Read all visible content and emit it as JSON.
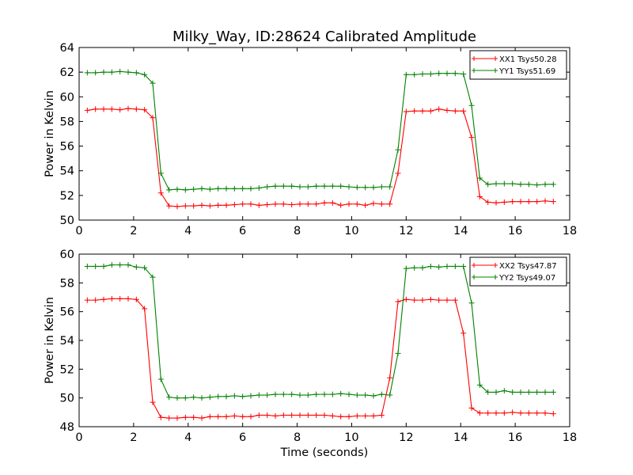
{
  "title": "Milky_Way, ID:28624 Calibrated Amplitude",
  "chart_data": [
    {
      "type": "line",
      "title": "Milky_Way, ID:28624 Calibrated Amplitude",
      "xlabel": "",
      "ylabel": "Power in Kelvin",
      "xlim": [
        0,
        18
      ],
      "ylim": [
        50,
        64
      ],
      "xticks": [
        "0",
        "2",
        "4",
        "6",
        "8",
        "10",
        "12",
        "14",
        "16",
        "18"
      ],
      "yticks": [
        "50",
        "52",
        "54",
        "56",
        "58",
        "60",
        "62",
        "64"
      ],
      "legend_position": "top-right",
      "grid": false,
      "series": [
        {
          "name": "XX1 Tsys50.28",
          "color": "#ff0000",
          "x": [
            0.3,
            0.6,
            0.9,
            1.2,
            1.5,
            1.8,
            2.1,
            2.4,
            2.7,
            3.0,
            3.3,
            3.6,
            3.9,
            4.2,
            4.5,
            4.8,
            5.1,
            5.4,
            5.7,
            6.0,
            6.3,
            6.6,
            6.9,
            7.2,
            7.5,
            7.8,
            8.1,
            8.4,
            8.7,
            9.0,
            9.3,
            9.6,
            9.9,
            10.2,
            10.5,
            10.8,
            11.1,
            11.4,
            11.7,
            12.0,
            12.3,
            12.6,
            12.9,
            13.2,
            13.5,
            13.8,
            14.1,
            14.4,
            14.7,
            15.0,
            15.3,
            15.6,
            15.9,
            16.2,
            16.5,
            16.8,
            17.1,
            17.4
          ],
          "y": [
            58.9,
            59.0,
            59.0,
            59.0,
            58.95,
            59.05,
            59.0,
            58.95,
            58.3,
            52.2,
            51.15,
            51.1,
            51.15,
            51.15,
            51.2,
            51.15,
            51.2,
            51.2,
            51.25,
            51.3,
            51.3,
            51.2,
            51.25,
            51.3,
            51.3,
            51.25,
            51.3,
            51.3,
            51.3,
            51.4,
            51.4,
            51.2,
            51.3,
            51.3,
            51.2,
            51.35,
            51.3,
            51.3,
            53.8,
            58.8,
            58.85,
            58.85,
            58.85,
            59.0,
            58.9,
            58.85,
            58.85,
            56.7,
            51.9,
            51.45,
            51.4,
            51.45,
            51.5,
            51.5,
            51.5,
            51.5,
            51.55,
            51.5
          ]
        },
        {
          "name": "YY1 Tsys51.69",
          "color": "#008000",
          "x": [
            0.3,
            0.6,
            0.9,
            1.2,
            1.5,
            1.8,
            2.1,
            2.4,
            2.7,
            3.0,
            3.3,
            3.6,
            3.9,
            4.2,
            4.5,
            4.8,
            5.1,
            5.4,
            5.7,
            6.0,
            6.3,
            6.6,
            6.9,
            7.2,
            7.5,
            7.8,
            8.1,
            8.4,
            8.7,
            9.0,
            9.3,
            9.6,
            9.9,
            10.2,
            10.5,
            10.8,
            11.1,
            11.4,
            11.7,
            12.0,
            12.3,
            12.6,
            12.9,
            13.2,
            13.5,
            13.8,
            14.1,
            14.4,
            14.7,
            15.0,
            15.3,
            15.6,
            15.9,
            16.2,
            16.5,
            16.8,
            17.1,
            17.4
          ],
          "y": [
            61.95,
            61.95,
            62.0,
            62.0,
            62.05,
            62.0,
            61.95,
            61.8,
            61.1,
            53.8,
            52.45,
            52.5,
            52.45,
            52.5,
            52.55,
            52.5,
            52.55,
            52.55,
            52.55,
            52.55,
            52.55,
            52.6,
            52.7,
            52.75,
            52.75,
            52.75,
            52.7,
            52.7,
            52.75,
            52.75,
            52.75,
            52.75,
            52.7,
            52.65,
            52.65,
            52.65,
            52.7,
            52.7,
            55.7,
            61.8,
            61.8,
            61.85,
            61.85,
            61.9,
            61.9,
            61.9,
            61.85,
            59.3,
            53.4,
            52.9,
            52.95,
            52.95,
            52.95,
            52.9,
            52.9,
            52.85,
            52.9,
            52.9
          ]
        }
      ]
    },
    {
      "type": "line",
      "title": "",
      "xlabel": "Time (seconds)",
      "ylabel": "Power in Kelvin",
      "xlim": [
        0,
        18
      ],
      "ylim": [
        48,
        60
      ],
      "xticks": [
        "0",
        "2",
        "4",
        "6",
        "8",
        "10",
        "12",
        "14",
        "16",
        "18"
      ],
      "yticks": [
        "48",
        "50",
        "52",
        "54",
        "56",
        "58",
        "60"
      ],
      "legend_position": "top-right",
      "grid": false,
      "series": [
        {
          "name": "XX2 Tsys47.87",
          "color": "#ff0000",
          "x": [
            0.3,
            0.6,
            0.9,
            1.2,
            1.5,
            1.8,
            2.1,
            2.4,
            2.7,
            3.0,
            3.3,
            3.6,
            3.9,
            4.2,
            4.5,
            4.8,
            5.1,
            5.4,
            5.7,
            6.0,
            6.3,
            6.6,
            6.9,
            7.2,
            7.5,
            7.8,
            8.1,
            8.4,
            8.7,
            9.0,
            9.3,
            9.6,
            9.9,
            10.2,
            10.5,
            10.8,
            11.1,
            11.4,
            11.7,
            12.0,
            12.3,
            12.6,
            12.9,
            13.2,
            13.5,
            13.8,
            14.1,
            14.4,
            14.7,
            15.0,
            15.3,
            15.6,
            15.9,
            16.2,
            16.5,
            16.8,
            17.1,
            17.4
          ],
          "y": [
            56.8,
            56.8,
            56.85,
            56.9,
            56.9,
            56.9,
            56.85,
            56.2,
            49.7,
            48.65,
            48.6,
            48.6,
            48.65,
            48.65,
            48.6,
            48.7,
            48.7,
            48.7,
            48.75,
            48.7,
            48.7,
            48.8,
            48.8,
            48.75,
            48.8,
            48.8,
            48.8,
            48.8,
            48.8,
            48.8,
            48.75,
            48.7,
            48.7,
            48.75,
            48.75,
            48.75,
            48.8,
            51.4,
            56.7,
            56.85,
            56.8,
            56.8,
            56.85,
            56.8,
            56.8,
            56.8,
            54.5,
            49.3,
            48.95,
            48.95,
            48.95,
            48.95,
            49.0,
            48.95,
            48.95,
            48.95,
            48.95,
            48.9
          ],
          "x_note": ""
        },
        {
          "name": "YY2 Tsys49.07",
          "color": "#008000",
          "x": [
            0.3,
            0.6,
            0.9,
            1.2,
            1.5,
            1.8,
            2.1,
            2.4,
            2.7,
            3.0,
            3.3,
            3.6,
            3.9,
            4.2,
            4.5,
            4.8,
            5.1,
            5.4,
            5.7,
            6.0,
            6.3,
            6.6,
            6.9,
            7.2,
            7.5,
            7.8,
            8.1,
            8.4,
            8.7,
            9.0,
            9.3,
            9.6,
            9.9,
            10.2,
            10.5,
            10.8,
            11.1,
            11.4,
            11.7,
            12.0,
            12.3,
            12.6,
            12.9,
            13.2,
            13.5,
            13.8,
            14.1,
            14.4,
            14.7,
            15.0,
            15.3,
            15.6,
            15.9,
            16.2,
            16.5,
            16.8,
            17.1,
            17.4
          ],
          "y": [
            59.15,
            59.15,
            59.15,
            59.25,
            59.25,
            59.25,
            59.1,
            59.05,
            58.4,
            51.3,
            50.05,
            50.0,
            50.0,
            50.05,
            50.0,
            50.05,
            50.1,
            50.1,
            50.15,
            50.1,
            50.15,
            50.2,
            50.2,
            50.25,
            50.25,
            50.25,
            50.2,
            50.2,
            50.25,
            50.25,
            50.25,
            50.3,
            50.25,
            50.2,
            50.2,
            50.15,
            50.25,
            50.2,
            53.1,
            59.0,
            59.05,
            59.05,
            59.15,
            59.1,
            59.15,
            59.15,
            59.15,
            56.6,
            50.9,
            50.4,
            50.4,
            50.5,
            50.4,
            50.4,
            50.4,
            50.4,
            50.4,
            50.4
          ]
        }
      ]
    }
  ]
}
